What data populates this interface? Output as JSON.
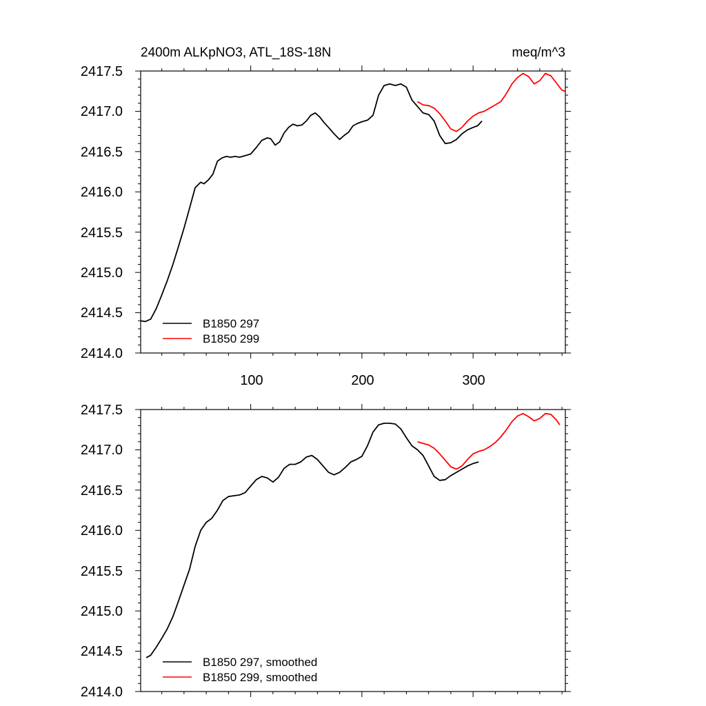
{
  "chart_data": [
    {
      "type": "line",
      "title": "2400m ALKpNO3, ATL_18S-18N",
      "units": "meq/m^3",
      "xlabel": "",
      "ylabel": "",
      "xlim": [
        1,
        383
      ],
      "ylim": [
        2414.0,
        2417.5
      ],
      "yticks": [
        "2417.5",
        "2417.0",
        "2416.5",
        "2416.0",
        "2415.5",
        "2415.0",
        "2414.5",
        "2414.0"
      ],
      "xticks": [
        "100",
        "200",
        "300"
      ],
      "legend_position": "bottom-left",
      "series": [
        {
          "name": "B1850 297",
          "color": "#000000",
          "x": [
            1,
            5,
            10,
            15,
            20,
            25,
            30,
            35,
            40,
            45,
            50,
            55,
            58,
            62,
            66,
            70,
            74,
            78,
            82,
            86,
            90,
            95,
            100,
            105,
            110,
            115,
            118,
            122,
            126,
            130,
            134,
            138,
            142,
            146,
            150,
            154,
            158,
            162,
            166,
            170,
            175,
            180,
            184,
            188,
            192,
            196,
            200,
            205,
            210,
            215,
            220,
            225,
            230,
            235,
            240,
            245,
            250,
            255,
            260,
            265,
            270,
            275,
            280,
            285,
            290,
            295,
            300,
            304,
            308
          ],
          "values": [
            2414.4,
            2414.39,
            2414.42,
            2414.55,
            2414.72,
            2414.9,
            2415.1,
            2415.32,
            2415.55,
            2415.8,
            2416.05,
            2416.12,
            2416.1,
            2416.15,
            2416.22,
            2416.38,
            2416.42,
            2416.44,
            2416.43,
            2416.44,
            2416.43,
            2416.45,
            2416.47,
            2416.55,
            2416.64,
            2416.67,
            2416.66,
            2416.58,
            2416.62,
            2416.73,
            2416.8,
            2416.84,
            2416.82,
            2416.83,
            2416.88,
            2416.95,
            2416.98,
            2416.93,
            2416.86,
            2416.8,
            2416.72,
            2416.65,
            2416.7,
            2416.74,
            2416.82,
            2416.85,
            2416.87,
            2416.89,
            2416.95,
            2417.2,
            2417.32,
            2417.34,
            2417.32,
            2417.34,
            2417.3,
            2417.14,
            2417.06,
            2416.98,
            2416.96,
            2416.88,
            2416.7,
            2416.6,
            2416.61,
            2416.65,
            2416.72,
            2416.77,
            2416.8,
            2416.82,
            2416.88
          ]
        },
        {
          "name": "B1850 299",
          "color": "#ff0000",
          "x": [
            250,
            255,
            260,
            265,
            270,
            275,
            280,
            285,
            290,
            295,
            300,
            305,
            310,
            315,
            320,
            325,
            330,
            335,
            340,
            345,
            350,
            355,
            360,
            365,
            370,
            375,
            380,
            383
          ],
          "values": [
            2417.12,
            2417.08,
            2417.07,
            2417.04,
            2416.97,
            2416.88,
            2416.78,
            2416.75,
            2416.8,
            2416.88,
            2416.94,
            2416.98,
            2417.0,
            2417.04,
            2417.08,
            2417.12,
            2417.22,
            2417.34,
            2417.42,
            2417.47,
            2417.43,
            2417.34,
            2417.38,
            2417.47,
            2417.44,
            2417.35,
            2417.26,
            2417.25
          ]
        }
      ]
    },
    {
      "type": "line",
      "title": "",
      "xlabel": "",
      "ylabel": "",
      "xlim": [
        1,
        383
      ],
      "ylim": [
        2414.0,
        2417.5
      ],
      "yticks": [
        "2417.5",
        "2417.0",
        "2416.5",
        "2416.0",
        "2415.5",
        "2415.0",
        "2414.5",
        "2414.0"
      ],
      "xticks": [],
      "legend_position": "bottom-left",
      "series": [
        {
          "name": "B1850 297, smoothed",
          "color": "#000000",
          "x": [
            6,
            10,
            15,
            20,
            25,
            30,
            35,
            40,
            45,
            50,
            55,
            60,
            65,
            70,
            75,
            80,
            85,
            90,
            95,
            100,
            105,
            110,
            115,
            120,
            125,
            130,
            135,
            140,
            145,
            150,
            155,
            160,
            165,
            170,
            175,
            180,
            185,
            190,
            195,
            200,
            205,
            210,
            215,
            220,
            225,
            230,
            235,
            240,
            245,
            250,
            255,
            260,
            265,
            270,
            275,
            280,
            285,
            290,
            295,
            300,
            305
          ],
          "values": [
            2414.42,
            2414.45,
            2414.55,
            2414.66,
            2414.78,
            2414.93,
            2415.12,
            2415.32,
            2415.52,
            2415.8,
            2416.0,
            2416.1,
            2416.15,
            2416.25,
            2416.37,
            2416.42,
            2416.43,
            2416.44,
            2416.47,
            2416.55,
            2416.63,
            2416.67,
            2416.65,
            2416.6,
            2416.66,
            2416.77,
            2416.82,
            2416.82,
            2416.85,
            2416.91,
            2416.93,
            2416.88,
            2416.8,
            2416.72,
            2416.69,
            2416.72,
            2416.78,
            2416.85,
            2416.88,
            2416.92,
            2417.05,
            2417.22,
            2417.31,
            2417.33,
            2417.33,
            2417.32,
            2417.26,
            2417.15,
            2417.05,
            2417.0,
            2416.93,
            2416.8,
            2416.67,
            2416.62,
            2416.63,
            2416.68,
            2416.72,
            2416.76,
            2416.8,
            2416.83,
            2416.85
          ]
        },
        {
          "name": "B1850 299, smoothed",
          "color": "#ff0000",
          "x": [
            250,
            255,
            260,
            265,
            270,
            275,
            280,
            285,
            290,
            295,
            300,
            305,
            310,
            315,
            320,
            325,
            330,
            335,
            340,
            345,
            350,
            355,
            360,
            365,
            370,
            375,
            378
          ],
          "values": [
            2417.1,
            2417.08,
            2417.06,
            2417.02,
            2416.95,
            2416.87,
            2416.79,
            2416.76,
            2416.8,
            2416.88,
            2416.95,
            2416.98,
            2417.0,
            2417.04,
            2417.09,
            2417.16,
            2417.25,
            2417.35,
            2417.42,
            2417.45,
            2417.41,
            2417.36,
            2417.39,
            2417.45,
            2417.44,
            2417.37,
            2417.31
          ]
        }
      ]
    }
  ]
}
